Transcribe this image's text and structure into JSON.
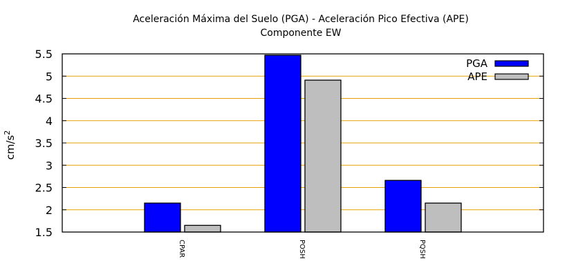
{
  "chart_data": {
    "type": "bar",
    "title": [
      "Aceleración Máxima del Suelo (PGA) -  Aceleración Pico Efectiva (APE)",
      "Componente EW"
    ],
    "xlabel": "",
    "ylabel": "cm/s",
    "ylabel_superscript": "2",
    "ylim": [
      1.5,
      5.5
    ],
    "yticks": [
      "1.5",
      "2",
      "2.5",
      "3",
      "3.5",
      "4",
      "4.5",
      "5",
      "5.5"
    ],
    "grid": true,
    "legend_position": "top-right",
    "categories": [
      "CPAR",
      "POSH",
      "PQSH"
    ],
    "series": [
      {
        "name": "PGA",
        "color": "#0000ff",
        "values": [
          2.15,
          5.47,
          2.66
        ]
      },
      {
        "name": "APE",
        "color": "#bebebe",
        "values": [
          1.65,
          4.91,
          2.15
        ]
      }
    ],
    "grid_color": "#e6a000"
  }
}
